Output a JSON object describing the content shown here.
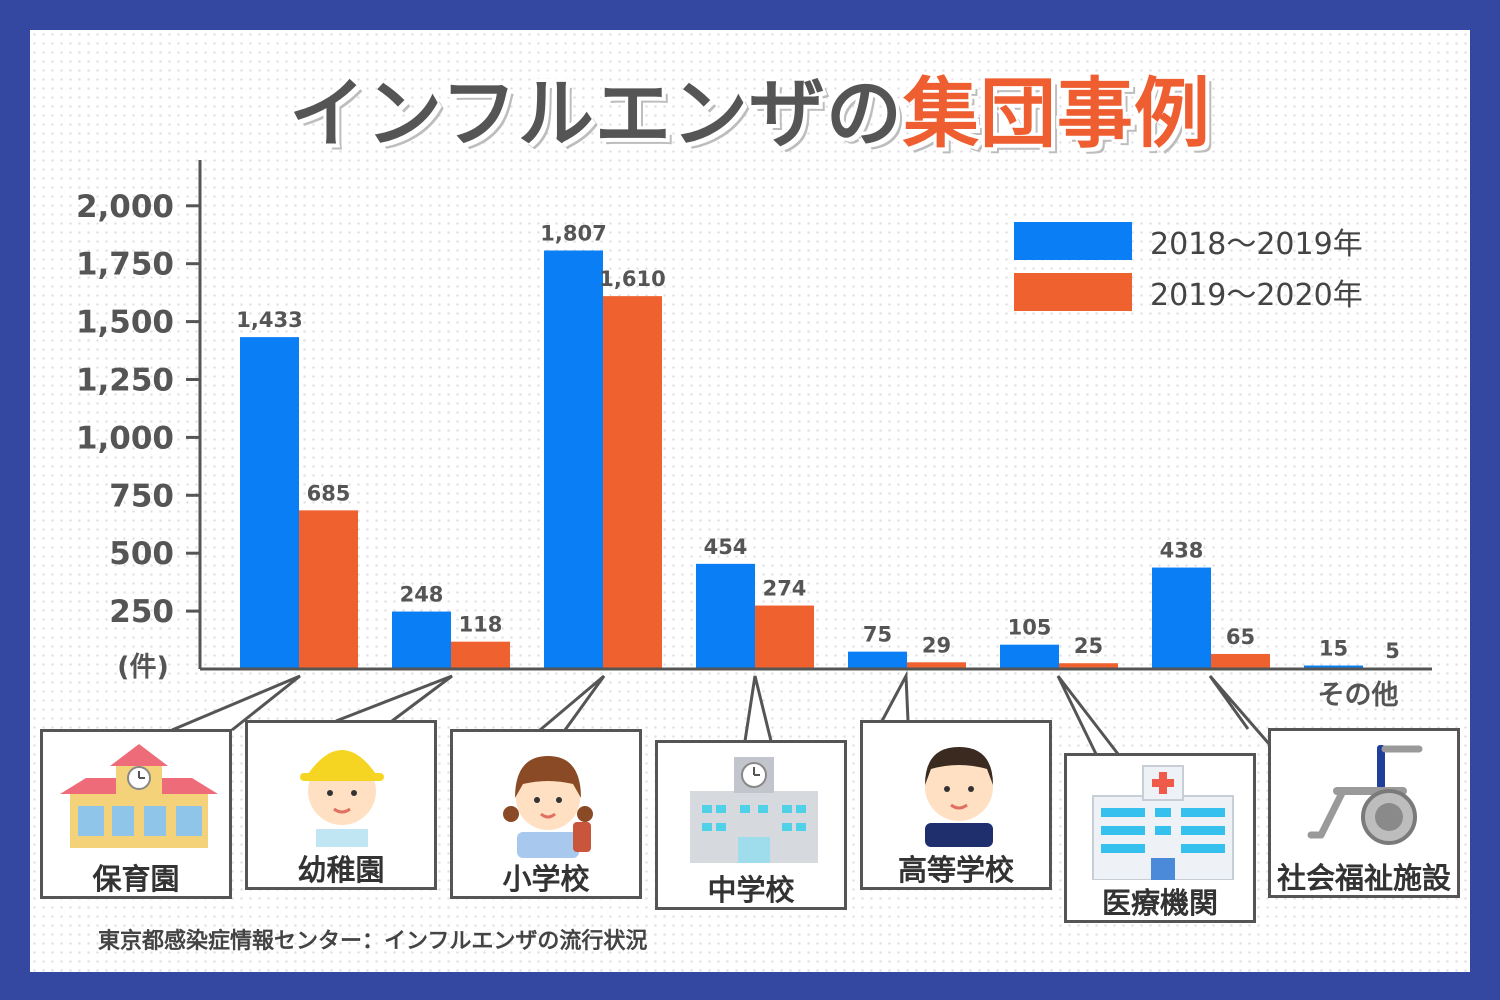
{
  "title": {
    "part1": "インフルエンザの",
    "part2": "集団事例"
  },
  "colors": {
    "frame": "#3447a1",
    "series1": "#0a7ff5",
    "series2": "#ef6230",
    "text": "#555555"
  },
  "source": "東京都感染症情報センター：インフルエンザの流行状況",
  "chart_data": {
    "type": "bar",
    "unit_label": "(件)",
    "ylim": [
      0,
      2200
    ],
    "yticks": [
      250,
      500,
      750,
      1000,
      1250,
      1500,
      1750,
      2000
    ],
    "ytick_labels": [
      "250",
      "500",
      "750",
      "1,000",
      "1,250",
      "1,500",
      "1,750",
      "2,000"
    ],
    "legend_position": "top-right",
    "categories": [
      "保育園",
      "幼稚園",
      "小学校",
      "中学校",
      "高等学校",
      "医療機関",
      "社会福祉施設",
      "その他"
    ],
    "series": [
      {
        "name": "2018〜2019年",
        "values": [
          1433,
          248,
          1807,
          454,
          75,
          105,
          438,
          15
        ],
        "labels": [
          "1,433",
          "248",
          "1,807",
          "454",
          "75",
          "105",
          "438",
          "15"
        ]
      },
      {
        "name": "2019〜2020年",
        "values": [
          685,
          118,
          1610,
          274,
          29,
          25,
          65,
          5
        ],
        "labels": [
          "685",
          "118",
          "1,610",
          "274",
          "29",
          "25",
          "65",
          "5"
        ]
      }
    ],
    "icons": [
      "nursery-school-building-icon",
      "kindergarten-child-icon",
      "elementary-school-girl-icon",
      "middle-school-building-icon",
      "high-school-boy-icon",
      "hospital-building-icon",
      "wheelchair-icon"
    ]
  }
}
